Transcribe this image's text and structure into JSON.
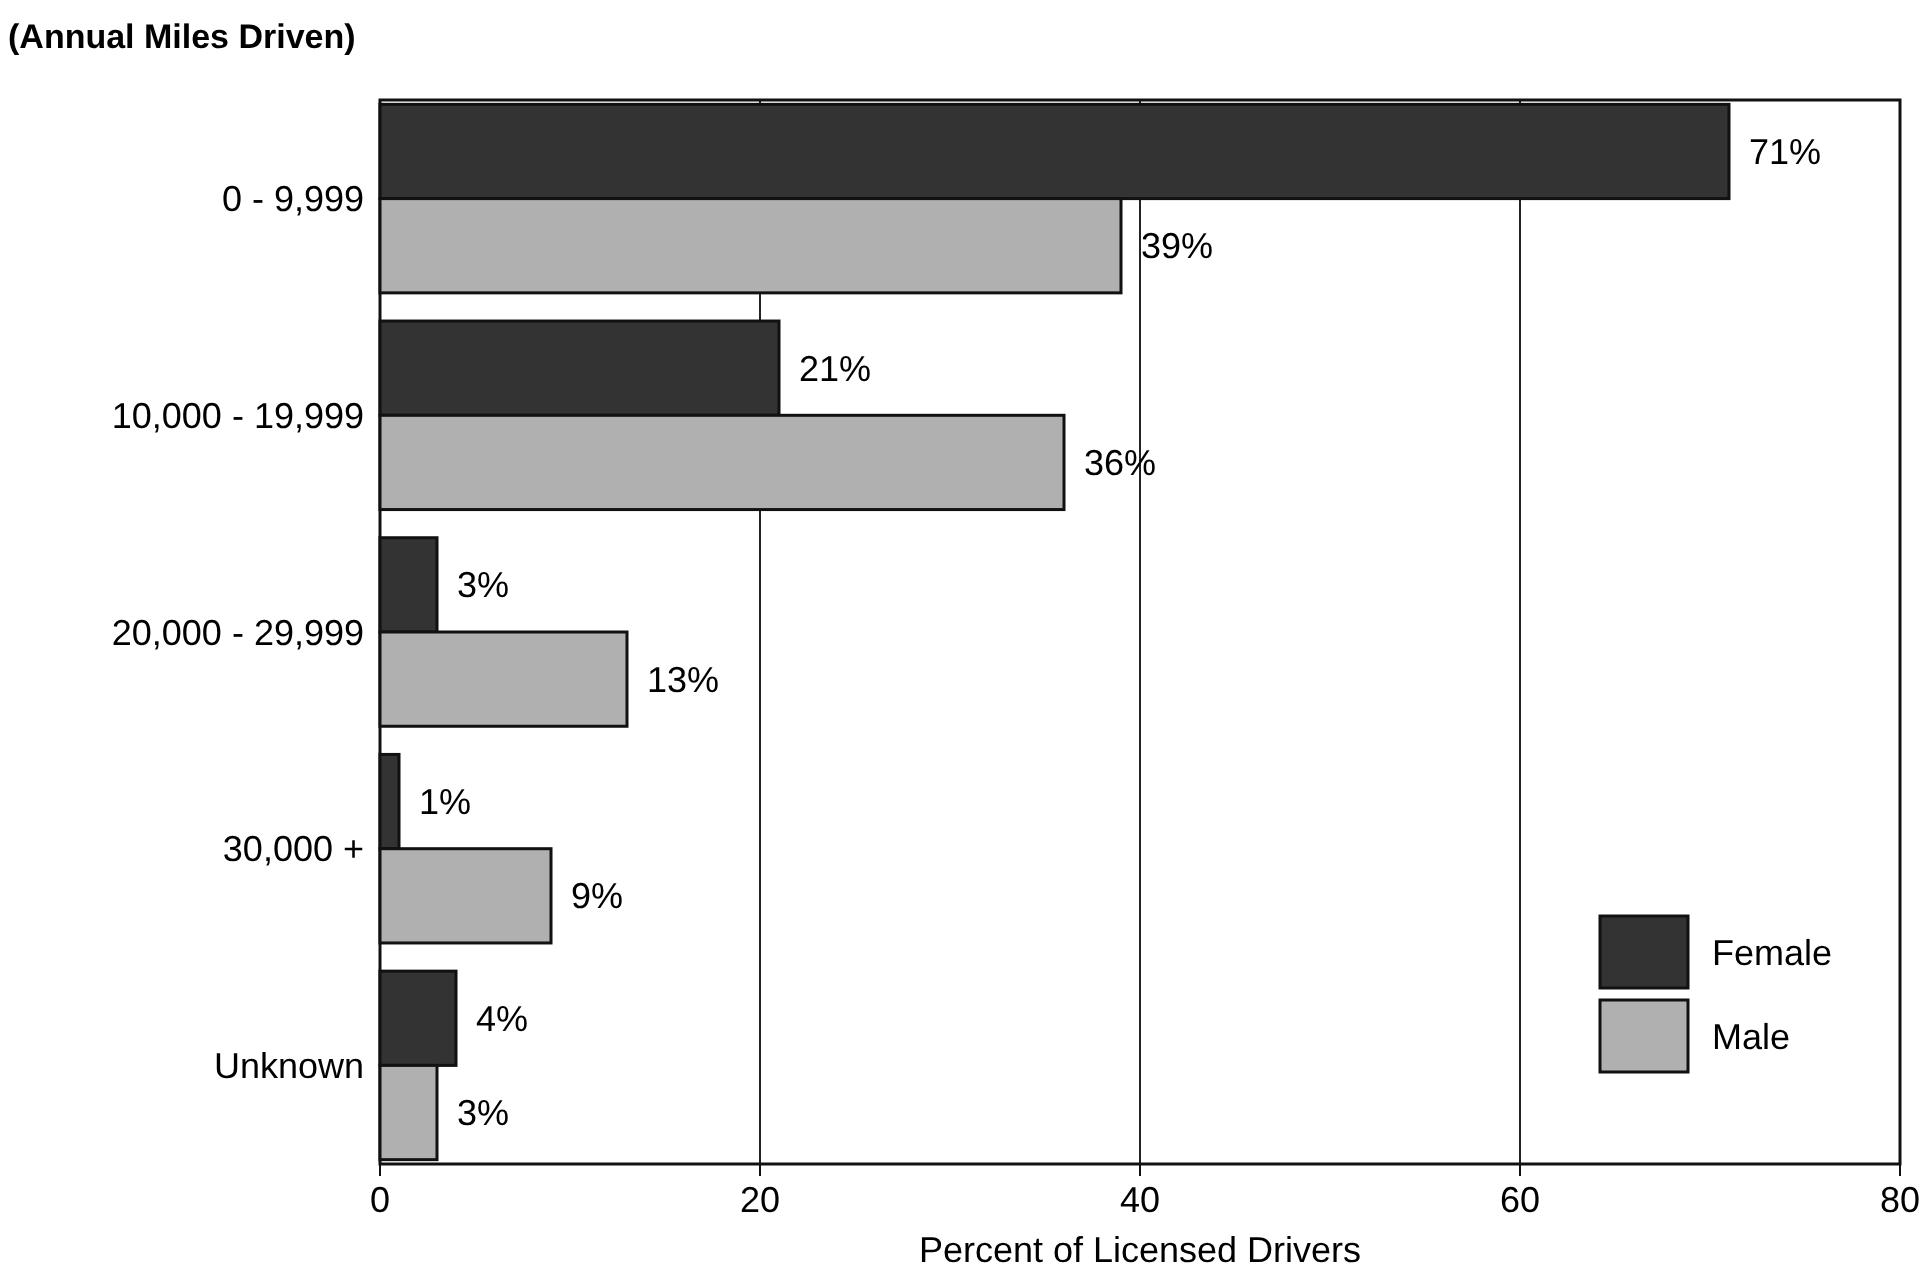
{
  "chart_data": {
    "type": "bar",
    "orientation": "horizontal",
    "ylabel": "(Annual Miles Driven)",
    "xlabel": "Percent of Licensed Drivers",
    "categories": [
      "0 - 9,999",
      "10,000 - 19,999",
      "20,000 - 29,999",
      "30,000 +",
      "Unknown"
    ],
    "series": [
      {
        "name": "Female",
        "color": "#333333",
        "values": [
          71,
          21,
          3,
          1,
          4
        ],
        "value_labels": [
          "71%",
          "21%",
          "3%",
          "1%",
          "4%"
        ]
      },
      {
        "name": "Male",
        "color": "#b0b0b0",
        "values": [
          39,
          36,
          13,
          9,
          3
        ],
        "value_labels": [
          "39%",
          "36%",
          "13%",
          "9%",
          "3%"
        ]
      }
    ],
    "xlim": [
      0,
      80
    ],
    "xticks": [
      0,
      20,
      40,
      60,
      80
    ],
    "grid": "x",
    "legend": "bottom right"
  }
}
